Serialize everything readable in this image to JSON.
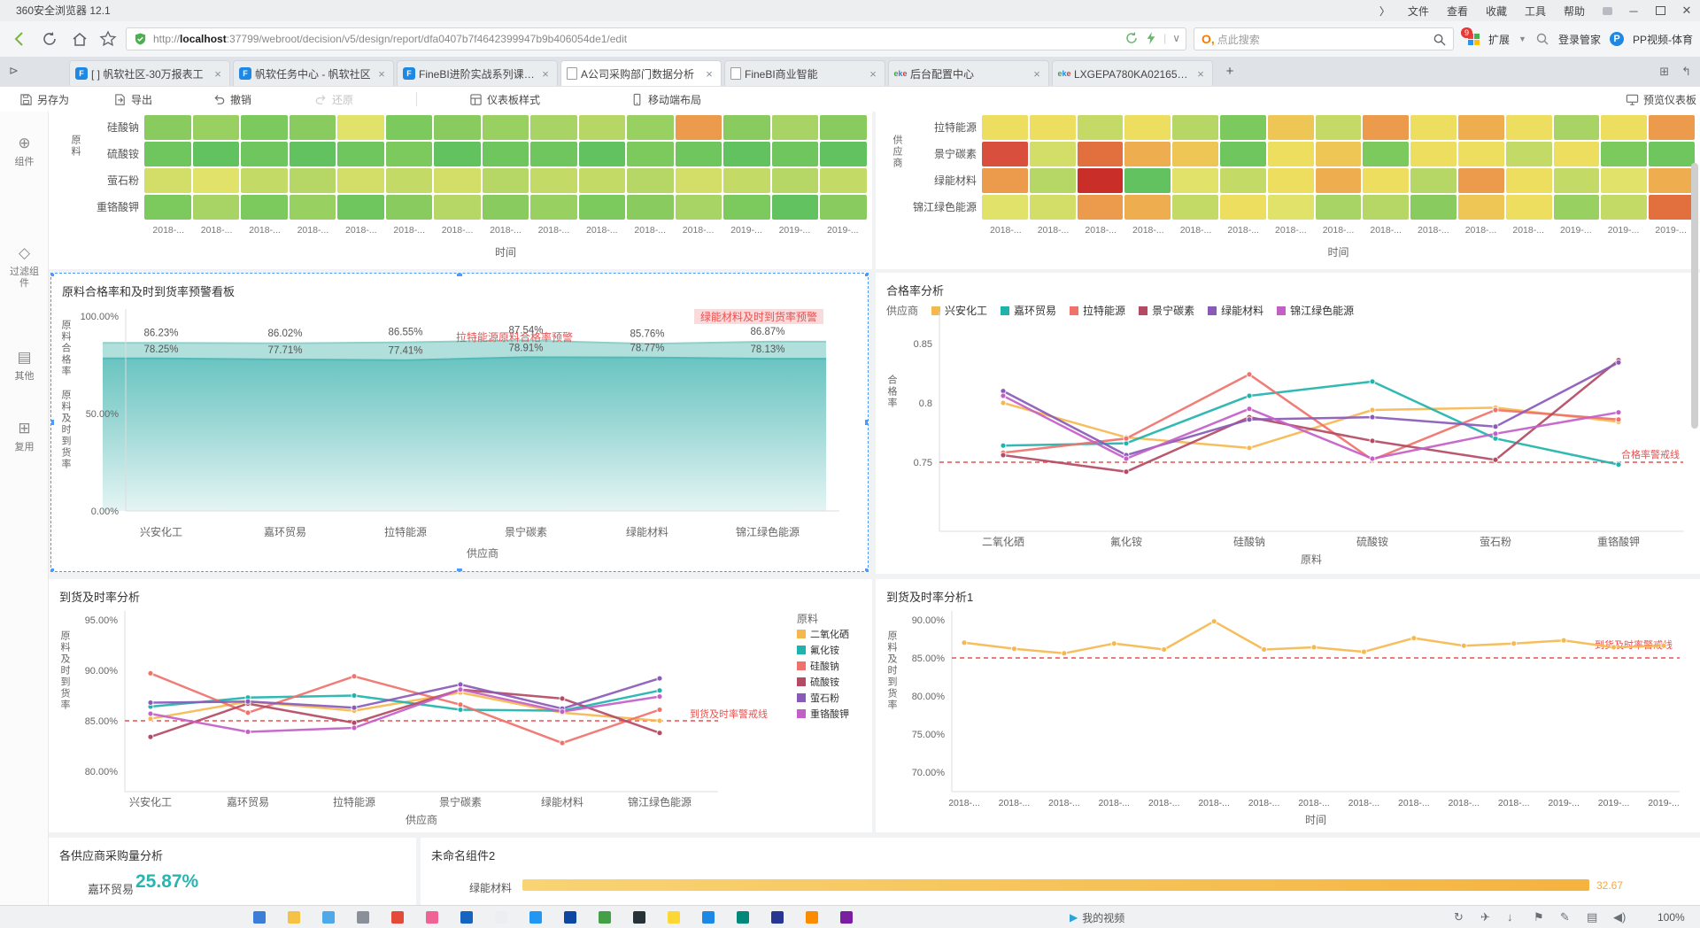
{
  "browser": {
    "window_title": "360安全浏览器 12.1",
    "menu": [
      "文件",
      "查看",
      "收藏",
      "工具",
      "帮助"
    ],
    "url_scheme": "http://",
    "url_host": "localhost",
    "url_rest": ":37799/webroot/decision/v5/design/report/dfa0407b7f4642399947b9b406054de1/edit",
    "search_placeholder": "点此搜索",
    "extensions_label": "扩展",
    "login_label": "登录管家",
    "pp_label": "PP视频-体育",
    "pp_badge": "9",
    "new_tab": "+"
  },
  "tabs": [
    {
      "title": "[ ] 帆软社区-30万报表工",
      "favicon": "fr",
      "active": false
    },
    {
      "title": "帆软任务中心 - 帆软社区",
      "favicon": "fr",
      "active": false
    },
    {
      "title": "FineBI进阶实战系列课程——企...",
      "favicon": "fr",
      "active": false
    },
    {
      "title": "A公司采购部门数据分析",
      "favicon": "doc",
      "active": true
    },
    {
      "title": "FineBI商业智能",
      "favicon": "doc",
      "active": false
    },
    {
      "title": "后台配置中心",
      "favicon": "eke",
      "active": false
    },
    {
      "title": "LXGEPA780KA021658超大吨位...",
      "favicon": "eke",
      "active": false
    }
  ],
  "bi_toolbar": {
    "save": "另存为",
    "export": "导出",
    "undo": "撤销",
    "redo": "还原",
    "style": "仪表板样式",
    "mobile": "移动端布局",
    "preview": "预览仪表板"
  },
  "bi_sidebar": [
    {
      "label": "组件"
    },
    {
      "label": "过滤组件"
    },
    {
      "label": "其他"
    },
    {
      "label": "复用"
    }
  ],
  "time_labels": [
    "2018-...",
    "2018-...",
    "2018-...",
    "2018-...",
    "2018-...",
    "2018-...",
    "2018-...",
    "2018-...",
    "2018-...",
    "2018-...",
    "2018-...",
    "2018-...",
    "2019-...",
    "2019-...",
    "2019-..."
  ],
  "panels": {
    "heatmap_left": {
      "y_axis_title": "原料",
      "rows": [
        "硅酸钠",
        "硫酸铵",
        "萤石粉",
        "重铬酸钾"
      ],
      "x_title": "时间",
      "cell_colors": [
        [
          "#8acb5f",
          "#98d061",
          "#7cc95e",
          "#8acb5f",
          "#e0e26a",
          "#7cc95e",
          "#8acb5f",
          "#98d061",
          "#a8d465",
          "#b6d765",
          "#98d061",
          "#ec9a4b",
          "#8acb5f",
          "#a8d465",
          "#8acb5f"
        ],
        [
          "#6fc65f",
          "#62c25f",
          "#6fc65f",
          "#62c25f",
          "#6fc65f",
          "#7cc95e",
          "#62c25f",
          "#6fc65f",
          "#6fc65f",
          "#62c25f",
          "#7cc95e",
          "#6fc65f",
          "#62c25f",
          "#6fc65f",
          "#62c25f"
        ],
        [
          "#d2de68",
          "#e0e26a",
          "#c4da66",
          "#b6d765",
          "#d2de68",
          "#c4da66",
          "#d2de68",
          "#b6d765",
          "#c4da66",
          "#c4da66",
          "#b6d765",
          "#d2de68",
          "#c4da66",
          "#b6d765",
          "#c4da66"
        ],
        [
          "#7cc95e",
          "#a8d465",
          "#7cc95e",
          "#98d061",
          "#6fc65f",
          "#8acb5f",
          "#b6d765",
          "#8acb5f",
          "#98d061",
          "#7cc95e",
          "#8acb5f",
          "#a8d465",
          "#7cc95e",
          "#62c25f",
          "#8acb5f"
        ]
      ]
    },
    "heatmap_right": {
      "y_axis_title": "供应商",
      "rows": [
        "拉特能源",
        "景宁碳素",
        "绿能材料",
        "锦江绿色能源"
      ],
      "x_title": "时间",
      "cell_colors": [
        [
          "#eede5f",
          "#eede5f",
          "#c4da66",
          "#eede5f",
          "#b6d765",
          "#7cc95e",
          "#eec655",
          "#c4da66",
          "#ec9a4b",
          "#eede5f",
          "#eeae50",
          "#eede5f",
          "#a8d465",
          "#eede5f",
          "#ec9a4b"
        ],
        [
          "#d94f3d",
          "#d2de68",
          "#e2703f",
          "#eeae50",
          "#eec655",
          "#6fc65f",
          "#eede5f",
          "#eec655",
          "#7cc95e",
          "#eede5f",
          "#eede5f",
          "#c4da66",
          "#eede5f",
          "#7cc95e",
          "#6fc65f"
        ],
        [
          "#ec9a4b",
          "#b6d765",
          "#c92f28",
          "#62c25f",
          "#e0e26a",
          "#c4da66",
          "#eede5f",
          "#eeae50",
          "#eede5f",
          "#b6d765",
          "#ec9a4b",
          "#eede5f",
          "#c4da66",
          "#e0e26a",
          "#eeae50"
        ],
        [
          "#e0e26a",
          "#d2de68",
          "#ec9a4b",
          "#eeae50",
          "#c4da66",
          "#eede5f",
          "#e0e26a",
          "#a8d465",
          "#b6d765",
          "#8acb5f",
          "#eec655",
          "#eede5f",
          "#98d061",
          "#c4da66",
          "#e2703f"
        ]
      ]
    },
    "warning": {
      "title": "原料合格率和及时到货率预警看板",
      "y_axis_title": "原料合格率 原料及时到货率",
      "y_ticks": [
        "100.00%",
        "50.00%",
        "0.00%"
      ],
      "x_title": "供应商",
      "categories": [
        "兴安化工",
        "嘉环贸易",
        "拉特能源",
        "景宁碳素",
        "绿能材料",
        "锦江绿色能源"
      ],
      "series": [
        {
          "name": "原料合格率",
          "values": [
            86.23,
            86.02,
            86.55,
            87.54,
            85.76,
            86.87
          ]
        },
        {
          "name": "原料及时到货率",
          "values": [
            78.25,
            77.71,
            77.41,
            78.91,
            78.77,
            78.13
          ]
        }
      ],
      "annotations": [
        {
          "text": "拉特能源原料合格率预警",
          "highlight": false
        },
        {
          "text": "绿能材料及时到货率预警",
          "highlight": true
        }
      ]
    },
    "qualified": {
      "title": "合格率分析",
      "legend_title": "供应商",
      "y_axis_title": "合格率",
      "y_ticks": [
        "0.85",
        "0.8",
        "0.75"
      ],
      "x_title": "原料",
      "categories": [
        "二氧化硒",
        "氟化铵",
        "硅酸钠",
        "硫酸铵",
        "萤石粉",
        "重铬酸钾"
      ],
      "warning_label": "合格率警戒线",
      "warning_value": 0.75,
      "series": [
        {
          "name": "兴安化工",
          "color": "#F5B84F",
          "values": [
            0.8,
            0.771,
            0.762,
            0.794,
            0.796,
            0.784
          ]
        },
        {
          "name": "嘉环贸易",
          "color": "#1FB3AE",
          "values": [
            0.764,
            0.766,
            0.806,
            0.818,
            0.77,
            0.748
          ]
        },
        {
          "name": "拉特能源",
          "color": "#EF726B",
          "values": [
            0.758,
            0.77,
            0.824,
            0.752,
            0.794,
            0.786
          ]
        },
        {
          "name": "景宁碳素",
          "color": "#B44A63",
          "values": [
            0.756,
            0.742,
            0.788,
            0.768,
            0.752,
            0.836
          ]
        },
        {
          "name": "绿能材料",
          "color": "#8A5AB8",
          "values": [
            0.81,
            0.756,
            0.786,
            0.788,
            0.78,
            0.834
          ]
        },
        {
          "name": "锦江绿色能源",
          "color": "#C360C8",
          "values": [
            0.806,
            0.753,
            0.795,
            0.753,
            0.774,
            0.792
          ]
        }
      ]
    },
    "delivery": {
      "title": "到货及时率分析",
      "legend_title": "原料",
      "y_axis_title": "原料及时到货率",
      "y_ticks": [
        "95.00%",
        "90.00%",
        "85.00%",
        "80.00%"
      ],
      "x_title": "供应商",
      "categories": [
        "兴安化工",
        "嘉环贸易",
        "拉特能源",
        "景宁碳素",
        "绿能材料",
        "锦江绿色能源"
      ],
      "warning_label": "到货及时率警戒线",
      "warning_value": 85,
      "series": [
        {
          "name": "二氧化硒",
          "color": "#F5B84F",
          "values": [
            85.2,
            86.9,
            86,
            87.8,
            85.8,
            85
          ]
        },
        {
          "name": "氟化铵",
          "color": "#1FB3AE",
          "values": [
            86.4,
            87.3,
            87.5,
            86.1,
            86,
            88
          ]
        },
        {
          "name": "硅酸钠",
          "color": "#EF726B",
          "values": [
            89.7,
            85.8,
            89.4,
            86.6,
            82.8,
            86.1
          ]
        },
        {
          "name": "硫酸铵",
          "color": "#B44A63",
          "values": [
            83.4,
            86.7,
            84.8,
            88.1,
            87.2,
            83.8
          ]
        },
        {
          "name": "萤石粉",
          "color": "#8A5AB8",
          "values": [
            86.8,
            86.9,
            86.3,
            88.6,
            86.2,
            89.2
          ]
        },
        {
          "name": "重铬酸钾",
          "color": "#C360C8",
          "values": [
            85.7,
            83.9,
            84.3,
            88.1,
            85.9,
            87.4
          ]
        }
      ]
    },
    "delivery1": {
      "title": "到货及时率分析1",
      "y_axis_title": "原料及时到货率",
      "y_ticks": [
        "90.00%",
        "85.00%",
        "80.00%",
        "75.00%",
        "70.00%"
      ],
      "x_title": "时间",
      "warning_label": "到货及时率警戒线",
      "warning_value": 85,
      "series_color": "#F5B84F",
      "values": [
        87,
        86.2,
        85.6,
        86.9,
        86.1,
        89.8,
        86.1,
        86.4,
        85.8,
        87.6,
        86.6,
        86.9,
        87.3,
        86.4,
        86.6
      ]
    },
    "purchase": {
      "title": "各供应商采购量分析",
      "label": "嘉环贸易",
      "value": "25.87%",
      "value_color": "#29B6B2"
    },
    "unnamed": {
      "title": "未命名组件2",
      "bar_label": "绿能材料",
      "bar_value": "32.67",
      "bar_color": "#F5BE5A"
    }
  },
  "statusbar": {
    "my_video": "我的视频",
    "zoom": "100%"
  },
  "colors": {
    "selection": "#4C9AFF",
    "warning": "#E65251",
    "area_band": "#A9DBD7",
    "area_top": "#58BDB9",
    "area_bottom": "#E3F4F3"
  },
  "taskbar_icon_colors": [
    "#3B7DD8",
    "#F5C243",
    "#4FA8E8",
    "#8A9099",
    "#E5493A",
    "#F06292",
    "#1565C0",
    "#ECEFF1",
    "#2196F3",
    "#0D47A1",
    "#43A047",
    "#263238",
    "#FDD835",
    "#1E88E5",
    "#00897B",
    "#283593",
    "#FB8C00",
    "#7B1FA2"
  ]
}
